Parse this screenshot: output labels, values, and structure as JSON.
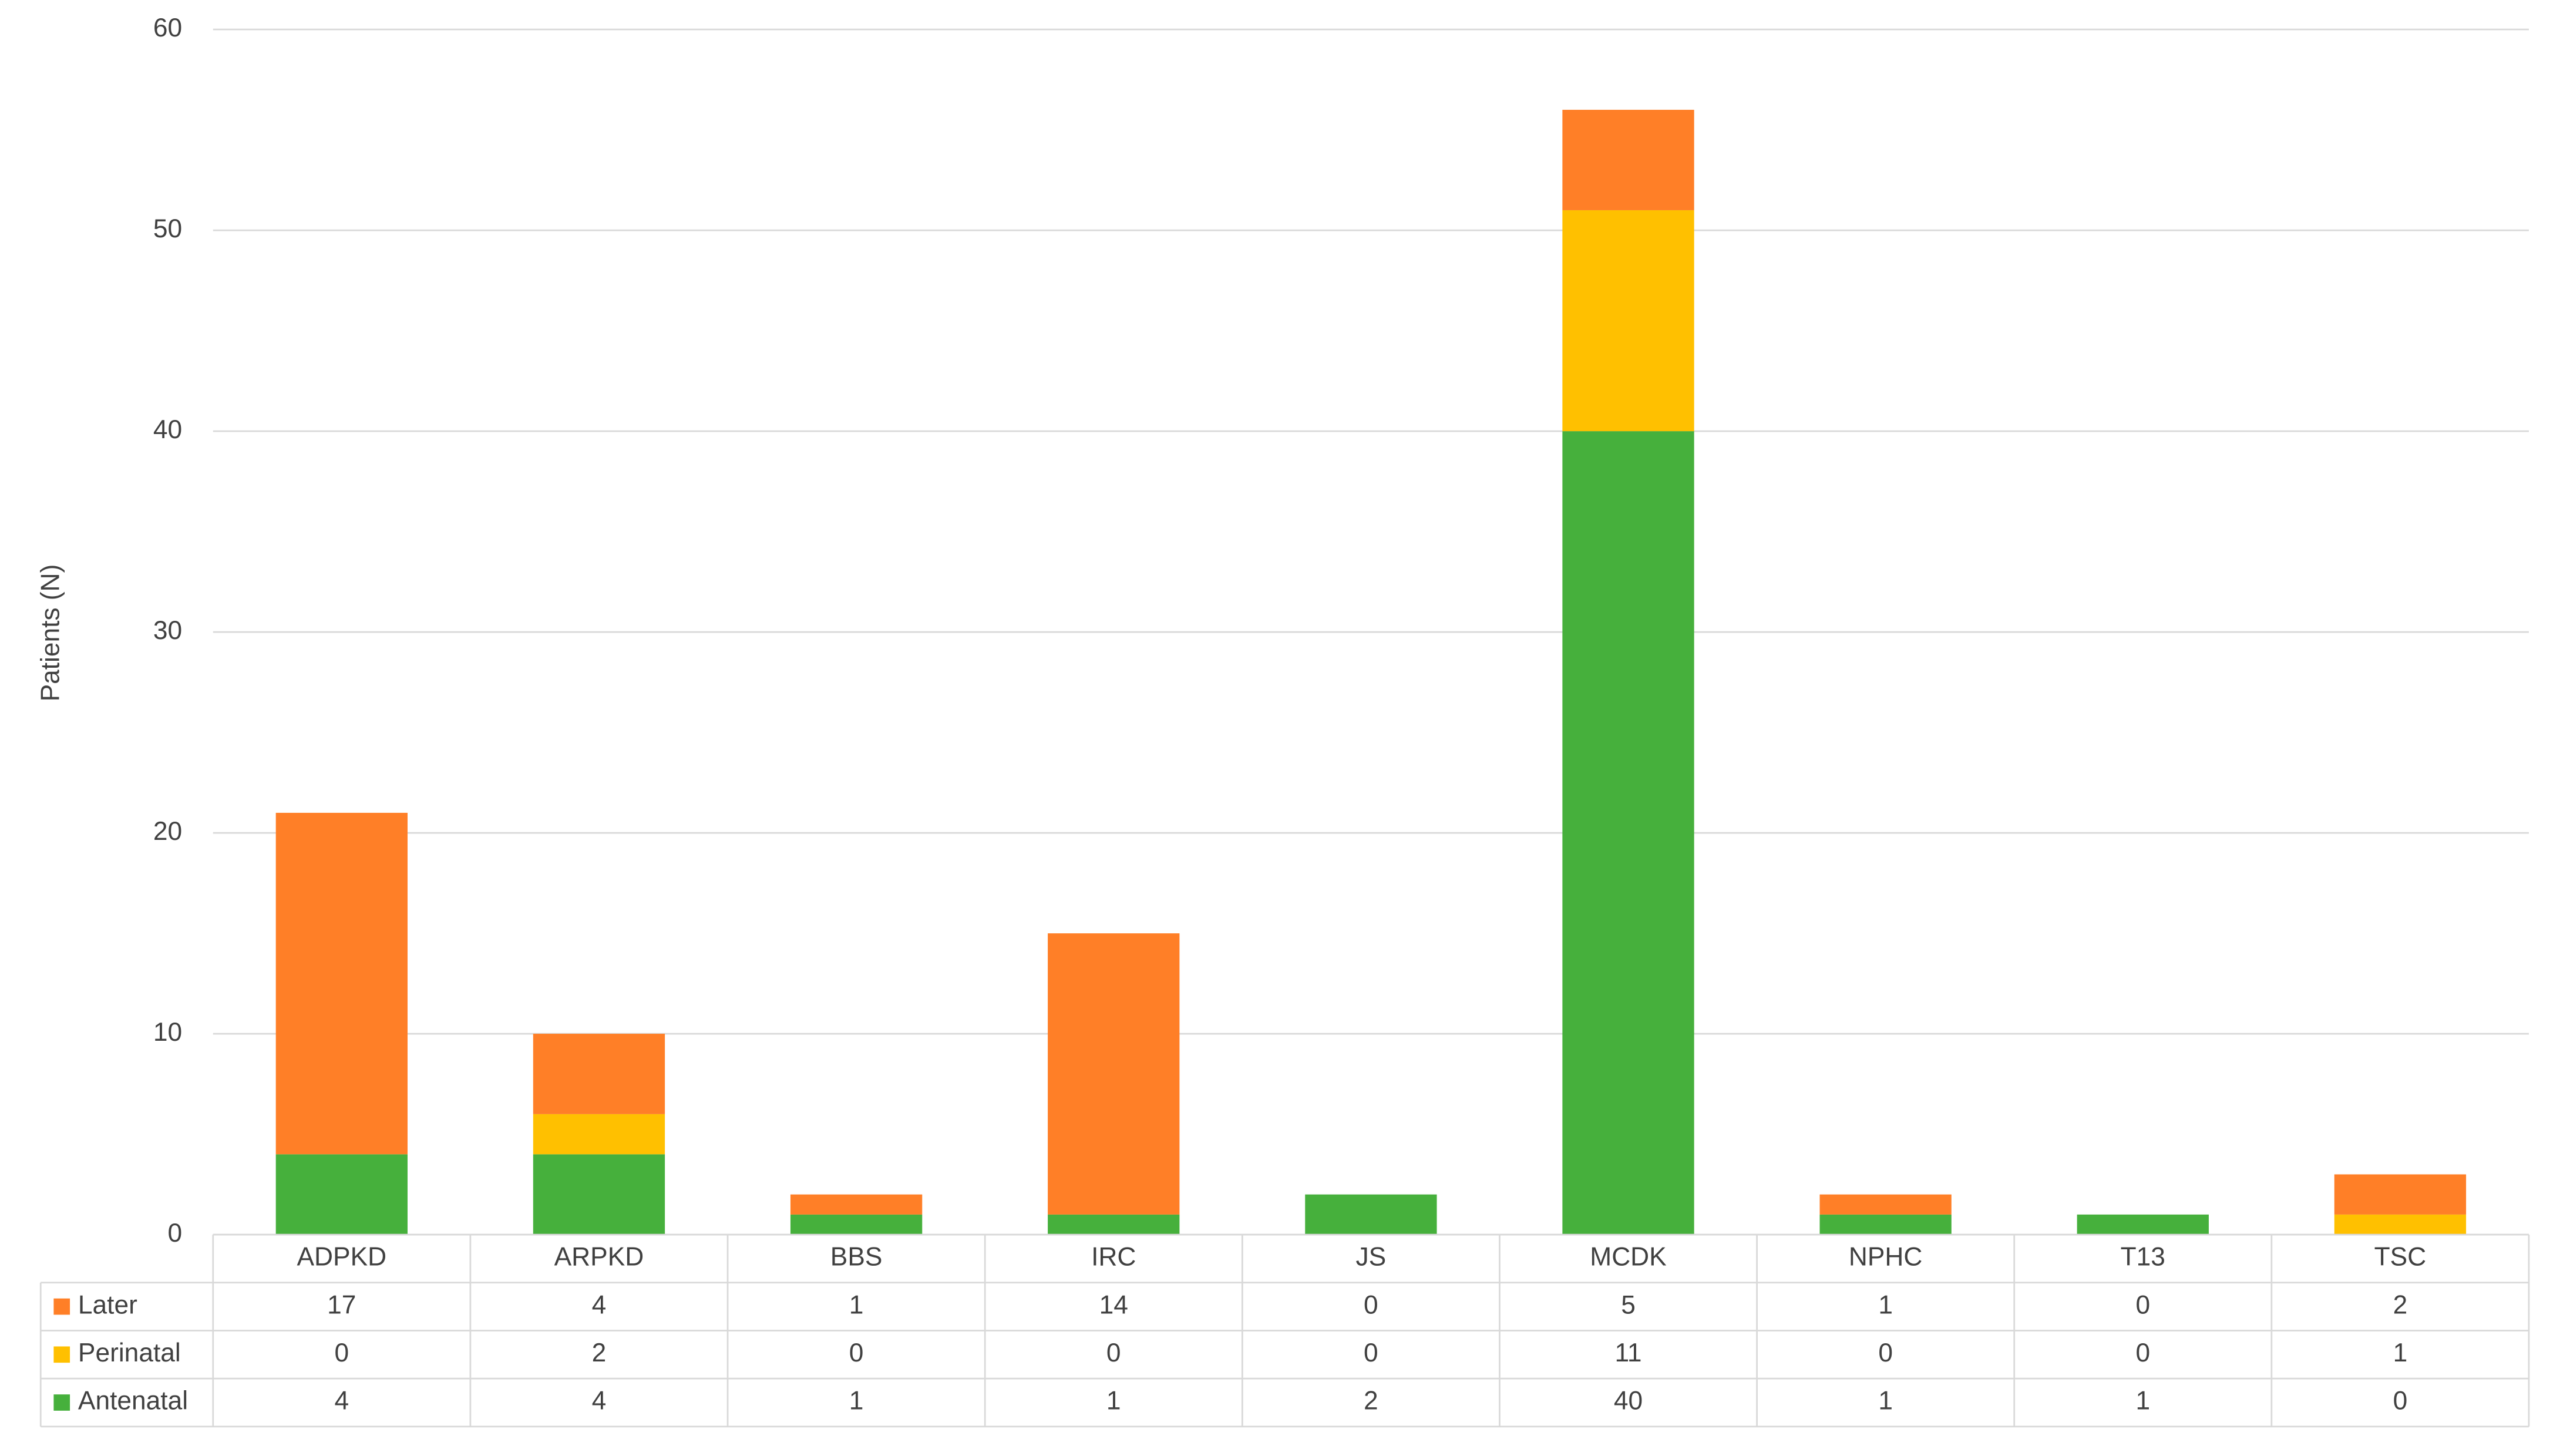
{
  "chart_data": {
    "type": "stacked_bar",
    "y_label": "Patients (N)",
    "categories": [
      "ADPKD",
      "ARPKD",
      "BBS",
      "IRC",
      "JS",
      "MCDK",
      "NPHC",
      "T13",
      "TSC"
    ],
    "series": [
      {
        "name": "Antenatal",
        "color": "#46b03c",
        "values": [
          4,
          4,
          1,
          1,
          2,
          40,
          1,
          1,
          0
        ]
      },
      {
        "name": "Perinatal",
        "color": "#ffc000",
        "values": [
          0,
          2,
          0,
          0,
          0,
          11,
          0,
          0,
          1
        ]
      },
      {
        "name": "Later",
        "color": "#ff7f27",
        "values": [
          17,
          4,
          1,
          14,
          0,
          5,
          1,
          0,
          2
        ]
      }
    ],
    "ylim": [
      0,
      60
    ],
    "yticks": [
      0,
      10,
      20,
      30,
      40,
      50,
      60
    ],
    "grid": true
  }
}
